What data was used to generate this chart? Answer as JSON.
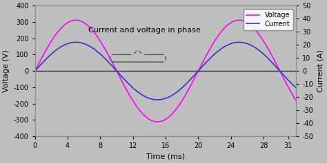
{
  "title": "",
  "xlabel": "Time (ms)",
  "ylabel_left": "Voltage (V)",
  "ylabel_right": "Current (A)",
  "xlim": [
    0,
    32
  ],
  "ylim_voltage": [
    -400,
    400
  ],
  "ylim_current": [
    -50,
    50
  ],
  "xticks": [
    0,
    4,
    8,
    12,
    16,
    20,
    24,
    28,
    31
  ],
  "yticks_left": [
    -400,
    -300,
    -200,
    -100,
    0,
    100,
    200,
    300,
    400
  ],
  "yticks_right": [
    -50,
    -40,
    -30,
    -20,
    -10,
    0,
    10,
    20,
    30,
    40,
    50
  ],
  "voltage_amplitude": 311,
  "current_amplitude": 22,
  "frequency_hz": 50,
  "voltage_color": "#FF00FF",
  "current_color": "#3333CC",
  "background_color": "#BEBEBE",
  "annotation_text": "Current and voltage in phase",
  "annotation_fontsize": 8,
  "legend_voltage": "Voltage",
  "legend_current": "Current",
  "zero_line_color": "#303030",
  "bracket_color": "#555555"
}
